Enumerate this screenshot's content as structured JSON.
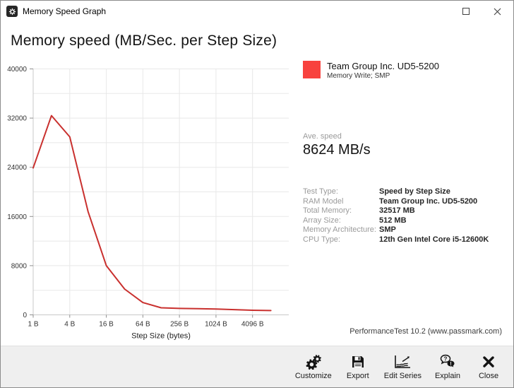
{
  "window": {
    "title": "Memory Speed Graph"
  },
  "page": {
    "title": "Memory speed (MB/Sec. per Step Size)"
  },
  "legend": {
    "name": "Team Group Inc. UD5-5200",
    "detail": "Memory Write; SMP",
    "color": "#f8423e"
  },
  "average": {
    "label": "Ave. speed",
    "value": "8624 MB/s"
  },
  "details": {
    "rows": [
      {
        "label": "Test Type:",
        "value": "Speed by Step Size"
      },
      {
        "label": "RAM Model",
        "value": "Team Group Inc. UD5-5200"
      },
      {
        "label": "Total Memory:",
        "value": "32517 MB"
      },
      {
        "label": "Array Size:",
        "value": "512 MB"
      },
      {
        "label": "Memory Architecture:",
        "value": "SMP"
      },
      {
        "label": "CPU Type:",
        "value": "12th Gen Intel Core i5-12600K"
      }
    ]
  },
  "footer": {
    "credit": "PerformanceTest 10.2 (www.passmark.com)"
  },
  "toolbar": {
    "buttons": [
      {
        "label": "Customize",
        "icon": "gears-icon"
      },
      {
        "label": "Export",
        "icon": "floppy-icon"
      },
      {
        "label": "Edit Series",
        "icon": "chart-lines-icon"
      },
      {
        "label": "Explain",
        "icon": "speech-question-icon"
      },
      {
        "label": "Close",
        "icon": "close-x-icon"
      }
    ]
  },
  "chart_data": {
    "type": "line",
    "title": "Memory speed (MB/Sec. per Step Size)",
    "xlabel": "Step Size (bytes)",
    "ylabel": "",
    "x_scale": "log2",
    "x_tick_values": [
      1,
      4,
      16,
      64,
      256,
      1024,
      4096
    ],
    "x_tick_labels": [
      "1 B",
      "4 B",
      "16 B",
      "64 B",
      "256 B",
      "1024 B",
      "4096 B"
    ],
    "ylim": [
      0,
      40000
    ],
    "y_grid_step": 4000,
    "y_label_step": 8000,
    "grid": true,
    "legend_position": "top-right",
    "series": [
      {
        "name": "Team Group Inc. UD5-5200 — Memory Write; SMP",
        "color": "#c9302e",
        "x": [
          1,
          2,
          4,
          8,
          16,
          32,
          64,
          128,
          256,
          512,
          1024,
          2048,
          4096,
          8192
        ],
        "values": [
          23900,
          32400,
          28950,
          16800,
          8000,
          4200,
          2000,
          1150,
          1050,
          1000,
          950,
          850,
          750,
          700
        ]
      }
    ]
  }
}
